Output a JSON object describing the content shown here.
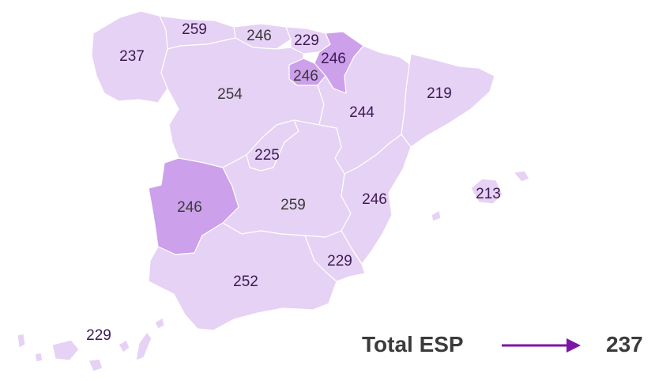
{
  "regions": [
    {
      "id": "galicia",
      "value": "237"
    },
    {
      "id": "asturias",
      "value": "259"
    },
    {
      "id": "cantabria",
      "value": "246"
    },
    {
      "id": "pais-vasco",
      "value": "229"
    },
    {
      "id": "navarra",
      "value": "246"
    },
    {
      "id": "la-rioja",
      "value": "246"
    },
    {
      "id": "castilla-y-leon",
      "value": "254"
    },
    {
      "id": "aragon",
      "value": "244"
    },
    {
      "id": "cataluna",
      "value": "219"
    },
    {
      "id": "madrid",
      "value": "225"
    },
    {
      "id": "extremadura",
      "value": "246"
    },
    {
      "id": "castilla-la-mancha",
      "value": "259"
    },
    {
      "id": "comunidad-valenciana",
      "value": "246"
    },
    {
      "id": "baleares",
      "value": "213"
    },
    {
      "id": "murcia",
      "value": "229"
    },
    {
      "id": "andalucia",
      "value": "252"
    },
    {
      "id": "canarias",
      "value": "229"
    }
  ],
  "total": {
    "label": "Total ESP",
    "value": "237"
  },
  "colors": {
    "light": "#e6d2f4",
    "mid": "#cca0ea",
    "arrow": "#7a17a6",
    "text": "#3b3b3b"
  }
}
